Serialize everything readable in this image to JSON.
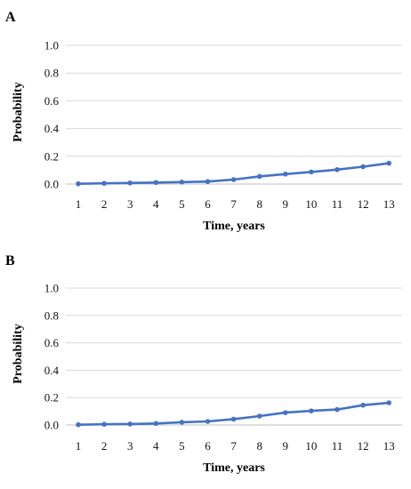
{
  "chart_data": [
    {
      "type": "line",
      "panel_label": "A",
      "xlabel": "Time, years",
      "ylabel": "Probability",
      "x": [
        1,
        2,
        3,
        4,
        5,
        6,
        7,
        8,
        9,
        10,
        11,
        12,
        13
      ],
      "series": [
        {
          "values": [
            0.002,
            0.005,
            0.008,
            0.011,
            0.014,
            0.018,
            0.032,
            0.055,
            0.072,
            0.087,
            0.104,
            0.125,
            0.15
          ]
        }
      ],
      "ylim": [
        0,
        1.0
      ],
      "yticks": [
        "0.0",
        "0.2",
        "0.4",
        "0.6",
        "0.8",
        "1.0"
      ],
      "xticks": [
        "1",
        "2",
        "3",
        "4",
        "5",
        "6",
        "7",
        "8",
        "9",
        "10",
        "11",
        "12",
        "13"
      ],
      "grid": true,
      "color": "#4472c4"
    },
    {
      "type": "line",
      "panel_label": "B",
      "xlabel": "Time, years",
      "ylabel": "Probability",
      "x": [
        1,
        2,
        3,
        4,
        5,
        6,
        7,
        8,
        9,
        10,
        11,
        12,
        13
      ],
      "series": [
        {
          "values": [
            0.002,
            0.005,
            0.007,
            0.011,
            0.02,
            0.026,
            0.043,
            0.065,
            0.09,
            0.103,
            0.113,
            0.145,
            0.162
          ]
        }
      ],
      "ylim": [
        0,
        1.0
      ],
      "yticks": [
        "0.0",
        "0.2",
        "0.4",
        "0.6",
        "0.8",
        "1.0"
      ],
      "xticks": [
        "1",
        "2",
        "3",
        "4",
        "5",
        "6",
        "7",
        "8",
        "9",
        "10",
        "11",
        "12",
        "13"
      ],
      "grid": true,
      "color": "#4472c4"
    }
  ]
}
